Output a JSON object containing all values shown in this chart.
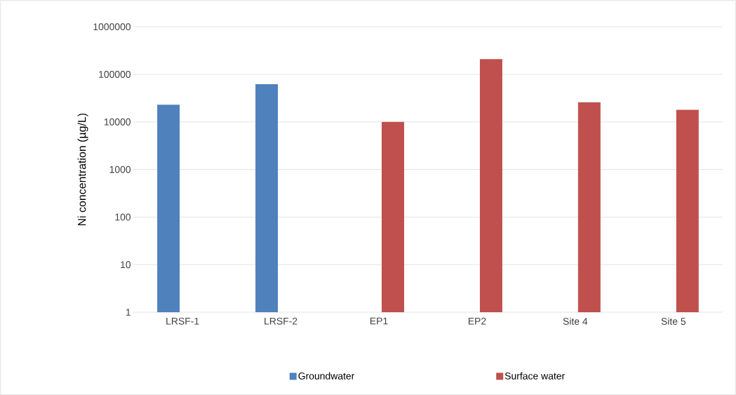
{
  "chart_data": {
    "type": "bar",
    "ylabel": "Ni concentration (µg/L)",
    "categories": [
      "LRSF-1",
      "LRSF-2",
      "EP1",
      "EP2",
      "Site 4",
      "Site 5"
    ],
    "series": [
      {
        "name": "Groundwater",
        "color": "#4f81bd",
        "values": [
          23000,
          62000,
          null,
          null,
          null,
          null
        ]
      },
      {
        "name": "Surface water",
        "color": "#c0504d",
        "values": [
          null,
          null,
          10000,
          210000,
          26000,
          18000
        ]
      }
    ],
    "log": "y",
    "ylim": [
      1,
      1000000
    ],
    "yticks": [
      1,
      10,
      100,
      1000,
      10000,
      100000,
      1000000
    ],
    "grid": "y",
    "legend": "bottom"
  }
}
